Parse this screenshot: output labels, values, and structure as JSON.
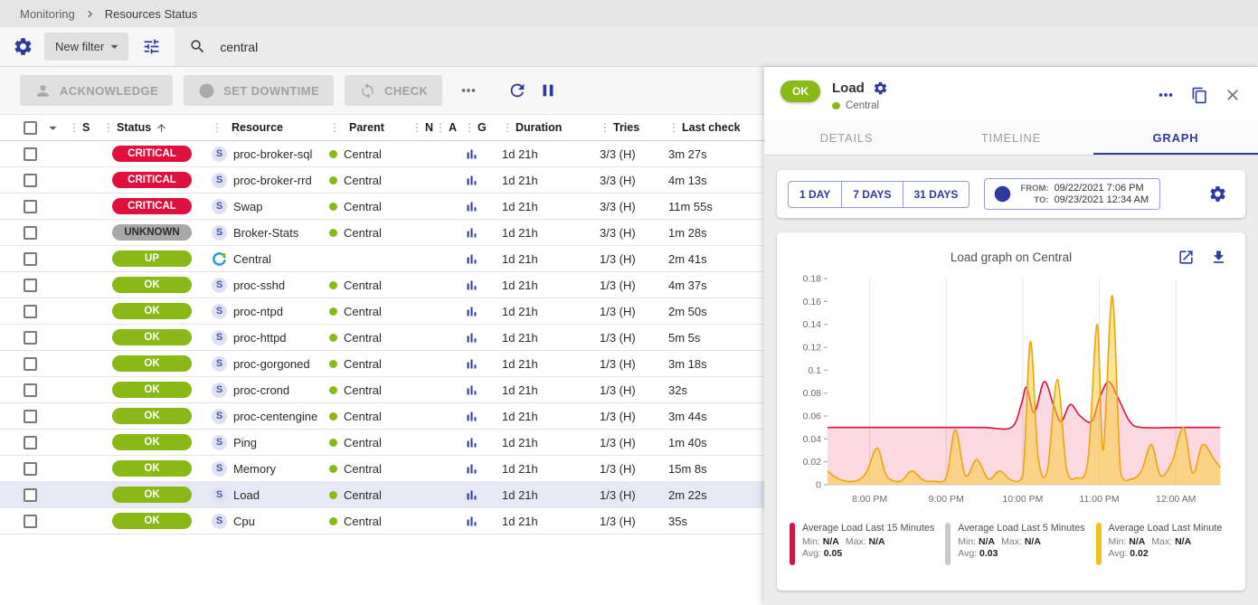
{
  "colors": {
    "accent": "#2f3a9e",
    "status": {
      "CRITICAL": {
        "bg": "#e0103c",
        "fg": "#ffffff"
      },
      "UNKNOWN": {
        "bg": "#a8a8a8",
        "fg": "#2d2d2d"
      },
      "UP": {
        "bg": "#88b917",
        "fg": "#ffffff"
      },
      "OK": {
        "bg": "#88b917",
        "fg": "#ffffff"
      }
    }
  },
  "breadcrumb": {
    "items": [
      "Monitoring",
      "Resources Status"
    ]
  },
  "filter": {
    "new_filter_label": "New filter",
    "search_value": "central"
  },
  "toolbar": {
    "acknowledge_label": "ACKNOWLEDGE",
    "set_downtime_label": "SET DOWNTIME",
    "check_label": "CHECK"
  },
  "table": {
    "headers": {
      "s": "S",
      "status": "Status",
      "resource": "Resource",
      "parent": "Parent",
      "n": "N",
      "a": "A",
      "g": "G",
      "duration": "Duration",
      "tries": "Tries",
      "last_check": "Last check"
    },
    "rows": [
      {
        "status": "CRITICAL",
        "icon": "S",
        "resource": "proc-broker-sql",
        "parent": "Central",
        "duration": "1d 21h",
        "tries": "3/3 (H)",
        "last_check": "3m 27s",
        "selected": false
      },
      {
        "status": "CRITICAL",
        "icon": "S",
        "resource": "proc-broker-rrd",
        "parent": "Central",
        "duration": "1d 21h",
        "tries": "3/3 (H)",
        "last_check": "4m 13s",
        "selected": false
      },
      {
        "status": "CRITICAL",
        "icon": "S",
        "resource": "Swap",
        "parent": "Central",
        "duration": "1d 21h",
        "tries": "3/3 (H)",
        "last_check": "11m 55s",
        "selected": false
      },
      {
        "status": "UNKNOWN",
        "icon": "S",
        "resource": "Broker-Stats",
        "parent": "Central",
        "duration": "1d 21h",
        "tries": "3/3 (H)",
        "last_check": "1m 28s",
        "selected": false
      },
      {
        "status": "UP",
        "icon": "host",
        "resource": "Central",
        "parent": "",
        "duration": "1d 21h",
        "tries": "1/3 (H)",
        "last_check": "2m 41s",
        "selected": false
      },
      {
        "status": "OK",
        "icon": "S",
        "resource": "proc-sshd",
        "parent": "Central",
        "duration": "1d 21h",
        "tries": "1/3 (H)",
        "last_check": "4m 37s",
        "selected": false
      },
      {
        "status": "OK",
        "icon": "S",
        "resource": "proc-ntpd",
        "parent": "Central",
        "duration": "1d 21h",
        "tries": "1/3 (H)",
        "last_check": "2m 50s",
        "selected": false
      },
      {
        "status": "OK",
        "icon": "S",
        "resource": "proc-httpd",
        "parent": "Central",
        "duration": "1d 21h",
        "tries": "1/3 (H)",
        "last_check": "5m 5s",
        "selected": false
      },
      {
        "status": "OK",
        "icon": "S",
        "resource": "proc-gorgoned",
        "parent": "Central",
        "duration": "1d 21h",
        "tries": "1/3 (H)",
        "last_check": "3m 18s",
        "selected": false
      },
      {
        "status": "OK",
        "icon": "S",
        "resource": "proc-crond",
        "parent": "Central",
        "duration": "1d 21h",
        "tries": "1/3 (H)",
        "last_check": "32s",
        "selected": false
      },
      {
        "status": "OK",
        "icon": "S",
        "resource": "proc-centengine",
        "parent": "Central",
        "duration": "1d 21h",
        "tries": "1/3 (H)",
        "last_check": "3m 44s",
        "selected": false
      },
      {
        "status": "OK",
        "icon": "S",
        "resource": "Ping",
        "parent": "Central",
        "duration": "1d 21h",
        "tries": "1/3 (H)",
        "last_check": "1m 40s",
        "selected": false
      },
      {
        "status": "OK",
        "icon": "S",
        "resource": "Memory",
        "parent": "Central",
        "duration": "1d 21h",
        "tries": "1/3 (H)",
        "last_check": "15m 8s",
        "selected": false
      },
      {
        "status": "OK",
        "icon": "S",
        "resource": "Load",
        "parent": "Central",
        "duration": "1d 21h",
        "tries": "1/3 (H)",
        "last_check": "2m 22s",
        "selected": true
      },
      {
        "status": "OK",
        "icon": "S",
        "resource": "Cpu",
        "parent": "Central",
        "duration": "1d 21h",
        "tries": "1/3 (H)",
        "last_check": "35s",
        "selected": false
      }
    ]
  },
  "panel": {
    "status": "OK",
    "title": "Load",
    "host": "Central",
    "tabs": [
      {
        "label": "DETAILS",
        "active": false
      },
      {
        "label": "TIMELINE",
        "active": false
      },
      {
        "label": "GRAPH",
        "active": true
      }
    ],
    "range_buttons": [
      "1 DAY",
      "7 DAYS",
      "31 DAYS"
    ],
    "from_label": "FROM:",
    "from_value": "09/22/2021 7:06 PM",
    "to_label": "TO:",
    "to_value": "09/23/2021 12:34 AM"
  },
  "chart_data": {
    "type": "area",
    "title": "Load graph on Central",
    "x_range": [
      19.45,
      24.6
    ],
    "y_range": [
      0,
      0.18
    ],
    "x_ticks": [
      {
        "x": 20,
        "label": "8:00 PM"
      },
      {
        "x": 21,
        "label": "9:00 PM"
      },
      {
        "x": 22,
        "label": "10:00 PM"
      },
      {
        "x": 23,
        "label": "11:00 PM"
      },
      {
        "x": 24,
        "label": "12:00 AM"
      }
    ],
    "y_tick_labels": [
      "0",
      "0.02",
      "0.04",
      "0.06",
      "0.08",
      "0.1",
      "0.12",
      "0.14",
      "0.16",
      "0.18"
    ],
    "legend_labels": {
      "min": "Min:",
      "max": "Max:",
      "avg": "Avg:"
    },
    "series": [
      {
        "name": "Average Load Last 15 Minutes",
        "color": "#e0103c",
        "legend_color": "#e0103c",
        "fill": "rgba(224,16,60,0.16)",
        "min": "N/A",
        "max": "N/A",
        "avg": "0.05",
        "points": [
          [
            19.45,
            0.05
          ],
          [
            20.0,
            0.05
          ],
          [
            20.5,
            0.05
          ],
          [
            21.0,
            0.05
          ],
          [
            21.5,
            0.05
          ],
          [
            21.85,
            0.05
          ],
          [
            21.98,
            0.07
          ],
          [
            22.05,
            0.085
          ],
          [
            22.15,
            0.063
          ],
          [
            22.28,
            0.09
          ],
          [
            22.4,
            0.07
          ],
          [
            22.5,
            0.055
          ],
          [
            22.62,
            0.07
          ],
          [
            22.75,
            0.06
          ],
          [
            22.9,
            0.055
          ],
          [
            23.0,
            0.075
          ],
          [
            23.12,
            0.09
          ],
          [
            23.25,
            0.075
          ],
          [
            23.4,
            0.055
          ],
          [
            23.55,
            0.05
          ],
          [
            24.0,
            0.05
          ],
          [
            24.58,
            0.05
          ]
        ]
      },
      {
        "name": "Average Load Last 5 Minutes",
        "color": "#c9c9c9",
        "legend_color": "#c9c9c9",
        "fill": "none",
        "min": "N/A",
        "max": "N/A",
        "avg": "0.03",
        "points": []
      },
      {
        "name": "Average Load Last Minute",
        "color": "#eda50f",
        "legend_color": "#f2c114",
        "fill": "rgba(249,205,62,0.55)",
        "min": "N/A",
        "max": "N/A",
        "avg": "0.02",
        "points": [
          [
            19.45,
            0.012
          ],
          [
            19.6,
            0.005
          ],
          [
            19.8,
            0.003
          ],
          [
            19.95,
            0.01
          ],
          [
            20.1,
            0.032
          ],
          [
            20.22,
            0.008
          ],
          [
            20.4,
            0.003
          ],
          [
            20.55,
            0.012
          ],
          [
            20.7,
            0.004
          ],
          [
            20.85,
            0.003
          ],
          [
            21.0,
            0.006
          ],
          [
            21.12,
            0.048
          ],
          [
            21.25,
            0.008
          ],
          [
            21.4,
            0.022
          ],
          [
            21.55,
            0.005
          ],
          [
            21.7,
            0.012
          ],
          [
            21.85,
            0.004
          ],
          [
            22.0,
            0.008
          ],
          [
            22.1,
            0.125
          ],
          [
            22.2,
            0.025
          ],
          [
            22.32,
            0.012
          ],
          [
            22.45,
            0.092
          ],
          [
            22.57,
            0.015
          ],
          [
            22.7,
            0.006
          ],
          [
            22.85,
            0.02
          ],
          [
            22.97,
            0.14
          ],
          [
            23.05,
            0.03
          ],
          [
            23.17,
            0.165
          ],
          [
            23.28,
            0.01
          ],
          [
            23.42,
            0.005
          ],
          [
            23.55,
            0.012
          ],
          [
            23.68,
            0.035
          ],
          [
            23.8,
            0.008
          ],
          [
            23.95,
            0.02
          ],
          [
            24.1,
            0.05
          ],
          [
            24.22,
            0.01
          ],
          [
            24.35,
            0.035
          ],
          [
            24.5,
            0.022
          ],
          [
            24.58,
            0.015
          ]
        ]
      }
    ]
  }
}
